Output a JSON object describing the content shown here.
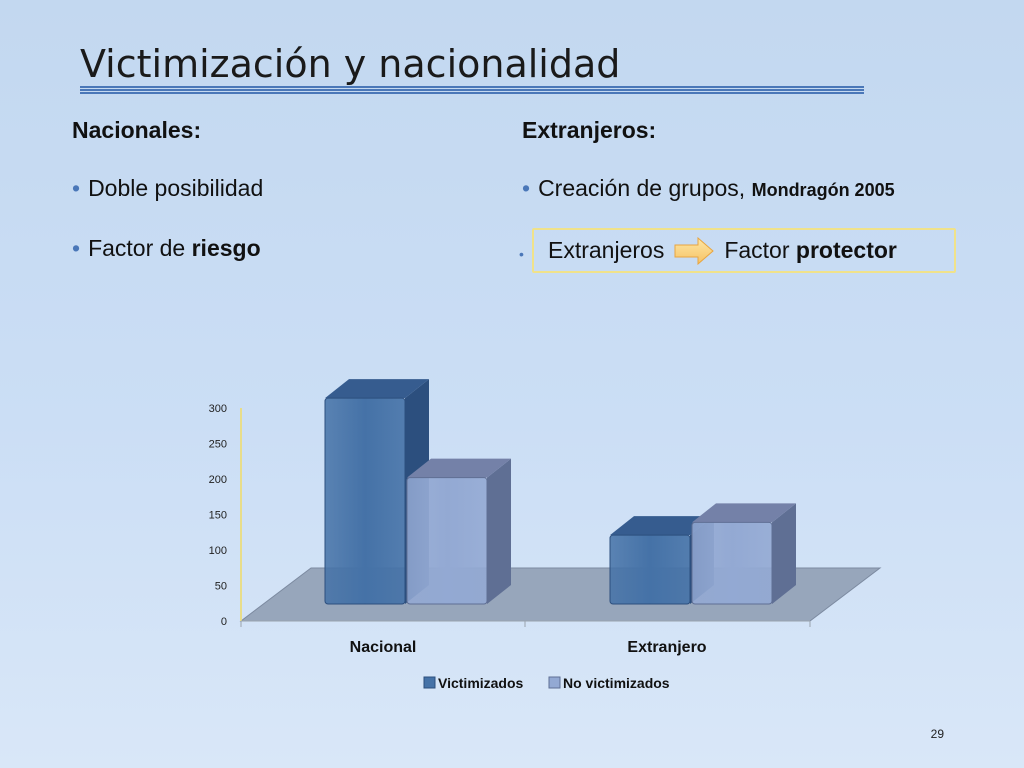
{
  "slide": {
    "title": "Victimización y nacionalidad",
    "page_number": "29"
  },
  "left": {
    "heading": "Nacionales:",
    "bullets": [
      {
        "text": "Doble posibilidad"
      },
      {
        "text_plain": "Factor de ",
        "text_bold": "riesgo"
      }
    ]
  },
  "right": {
    "heading": "Extranjeros:",
    "bullet1": {
      "text": "Creación de grupos, ",
      "ref": "Mondragón 2005"
    },
    "bullet2": {
      "left": "Extranjeros",
      "right_plain": "Factor ",
      "right_bold": "protector",
      "arrow_icon": "right-arrow-icon"
    }
  },
  "colors": {
    "accent": "#4a77b8",
    "series1": "#4572a7",
    "series2": "#93a9d3",
    "floor": "#97a6bb",
    "highlight_border": "#f0e28a"
  },
  "chart_data": {
    "type": "bar",
    "categories": [
      "Nacional",
      "Extranjero"
    ],
    "series": [
      {
        "name": "Victimizados",
        "values": [
          290,
          97
        ]
      },
      {
        "name": "No victimizados",
        "values": [
          178,
          115
        ]
      }
    ],
    "ylim": [
      0,
      300
    ],
    "yticks": [
      0,
      50,
      100,
      150,
      200,
      250,
      300
    ],
    "legend": "bottom",
    "three_d": true,
    "gridlines": false
  }
}
